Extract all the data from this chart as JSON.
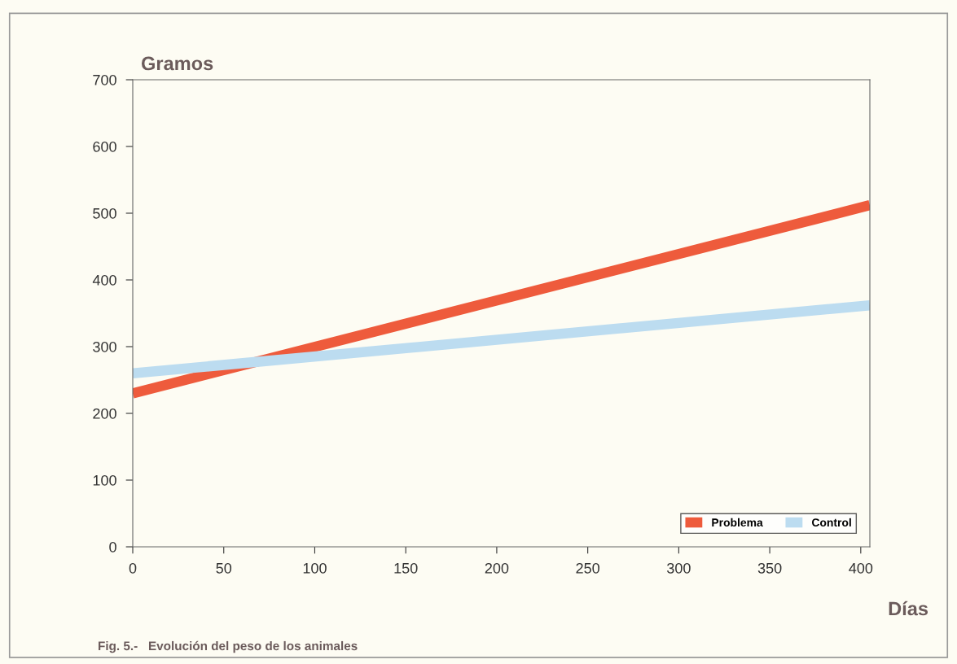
{
  "chart_data": {
    "type": "line",
    "ylabel": "Gramos",
    "xlabel": "Días",
    "annotations": [
      "Fig. 5.-   Evolución del peso de los animales"
    ],
    "series": [
      {
        "name": "Problema",
        "color": "#ee5b3c",
        "values": [
          230,
          512
        ]
      },
      {
        "name": "Control",
        "color": "#bcdcf0",
        "values": [
          260,
          362
        ]
      }
    ],
    "x": [
      0,
      405
    ],
    "xlim": [
      0,
      405
    ],
    "xticks": [
      0,
      50,
      100,
      150,
      200,
      250,
      300,
      350,
      400
    ],
    "ylim": [
      0,
      700
    ],
    "yticks": [
      0,
      100,
      200,
      300,
      400,
      500,
      600,
      700
    ],
    "grid": false,
    "legend": "bottom right",
    "marker": "none",
    "line_style": "solid"
  }
}
